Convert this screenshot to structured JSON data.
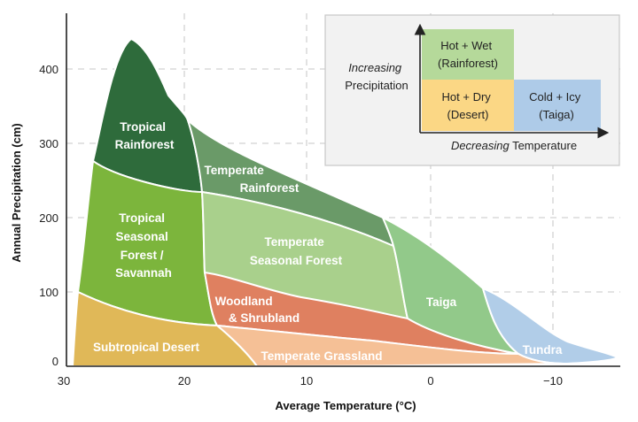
{
  "axes": {
    "x_title": "Average Temperature (°C)",
    "y_title": "Annual Precipitation (cm)",
    "x_ticks": [
      "30",
      "20",
      "10",
      "0",
      "−10"
    ],
    "y_ticks": [
      "0",
      "100",
      "200",
      "300",
      "400"
    ]
  },
  "colors": {
    "tropical_rainforest": "#2e6b3b",
    "temperate_rainforest": "#6a9a68",
    "tropical_seasonal": "#7cb53c",
    "temperate_seasonal": "#a9d08c",
    "woodland": "#df8060",
    "taiga": "#92c98a",
    "subtropical_desert": "#e0b858",
    "temperate_grassland": "#f5c096",
    "tundra": "#b1cde8",
    "legend_wet": "#b5d99a",
    "legend_dry": "#fbd785",
    "legend_icy": "#aecbe8"
  },
  "biomes": {
    "tropical_rainforest": [
      "Tropical",
      "Rainforest"
    ],
    "temperate_rainforest": [
      "Temperate",
      "Rainforest"
    ],
    "tropical_seasonal": [
      "Tropical",
      "Seasonal",
      "Forest /",
      "Savannah"
    ],
    "temperate_seasonal": [
      "Temperate",
      "Seasonal Forest"
    ],
    "woodland": [
      "Woodland",
      "& Shrubland"
    ],
    "taiga": "Taiga",
    "subtropical_desert": "Subtropical Desert",
    "temperate_grassland": "Temperate Grassland",
    "tundra": "Tundra"
  },
  "legend": {
    "y_label_line1": "Increasing",
    "y_label_line2": "Precipitation",
    "x_label_italic": "Decreasing",
    "x_label_rest": " Temperature",
    "wet": [
      "Hot + Wet",
      "(Rainforest)"
    ],
    "dry": [
      "Hot + Dry",
      "(Desert)"
    ],
    "icy": [
      "Cold + Icy",
      "(Taiga)"
    ]
  }
}
